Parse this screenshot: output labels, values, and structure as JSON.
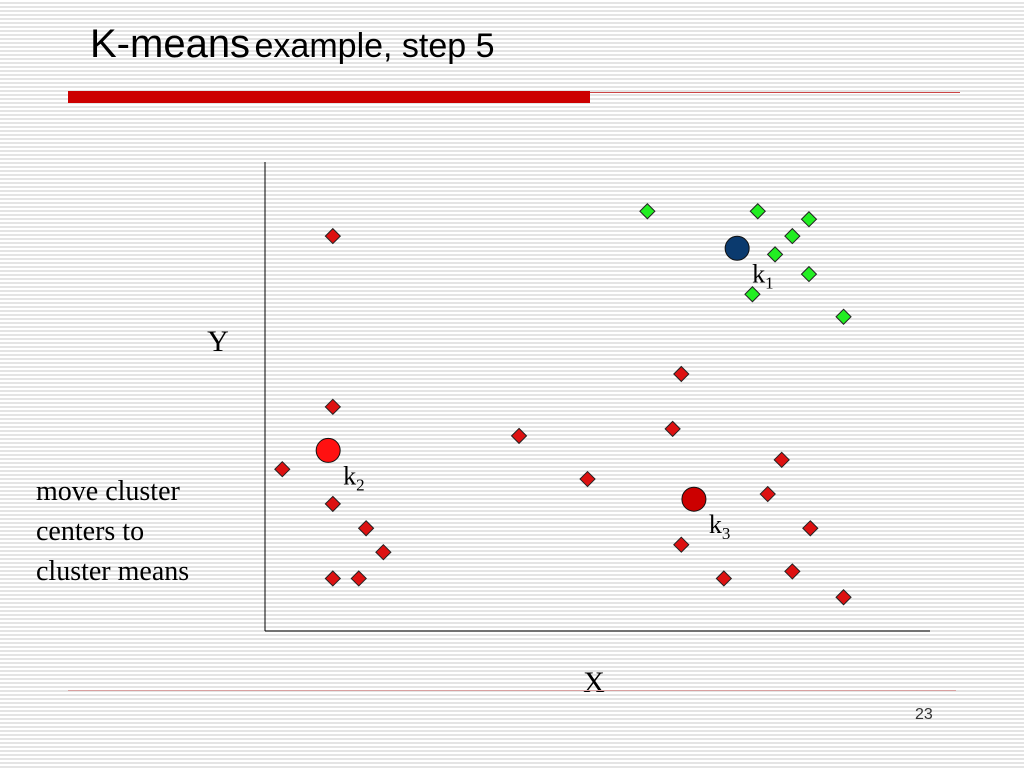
{
  "slide": {
    "title_main": "K-means",
    "title_sub": "example, step 5",
    "note_lines": [
      "move cluster",
      "centers to",
      "cluster means"
    ],
    "page_number": "23"
  },
  "colors": {
    "accent_bar": "#cc0000",
    "green_points": "#22ee22",
    "red_points": "#dd1111",
    "k1_center": "#0b3a6e",
    "k2_center": "#ff1111",
    "k3_center": "#cc0000"
  },
  "chart_data": {
    "type": "scatter",
    "xlabel": "X",
    "ylabel": "Y",
    "xlim": [
      0,
      100
    ],
    "ylim": [
      0,
      100
    ],
    "grid": false,
    "ticks": false,
    "series": [
      {
        "cluster": "green",
        "color": "#22ee22",
        "marker": "diamond",
        "points": [
          [
            57.5,
            89.5
          ],
          [
            74.1,
            89.5
          ],
          [
            81.8,
            87.8
          ],
          [
            79.3,
            84.2
          ],
          [
            76.7,
            80.3
          ],
          [
            81.8,
            76.1
          ],
          [
            73.3,
            71.8
          ],
          [
            87.0,
            67.0
          ]
        ]
      },
      {
        "cluster": "red",
        "color": "#dd1111",
        "marker": "diamond",
        "points": [
          [
            10.2,
            84.2
          ],
          [
            62.6,
            54.8
          ],
          [
            10.2,
            47.8
          ],
          [
            38.2,
            41.6
          ],
          [
            61.3,
            43.1
          ],
          [
            2.6,
            34.5
          ],
          [
            77.7,
            36.5
          ],
          [
            48.5,
            32.4
          ],
          [
            10.2,
            27.1
          ],
          [
            75.6,
            29.2
          ],
          [
            15.2,
            21.9
          ],
          [
            82.0,
            21.9
          ],
          [
            62.6,
            18.4
          ],
          [
            17.8,
            16.8
          ],
          [
            10.2,
            11.2
          ],
          [
            14.1,
            11.2
          ],
          [
            69.0,
            11.2
          ],
          [
            79.3,
            12.7
          ],
          [
            87.0,
            7.2
          ]
        ]
      }
    ],
    "centers": [
      {
        "label": "k",
        "sub": "1",
        "x": 71.0,
        "y": 81.6,
        "color": "#0b3a6e"
      },
      {
        "label": "k",
        "sub": "2",
        "x": 9.5,
        "y": 38.5,
        "color": "#ff1111"
      },
      {
        "label": "k",
        "sub": "3",
        "x": 64.5,
        "y": 28.1,
        "color": "#cc0000"
      }
    ]
  }
}
